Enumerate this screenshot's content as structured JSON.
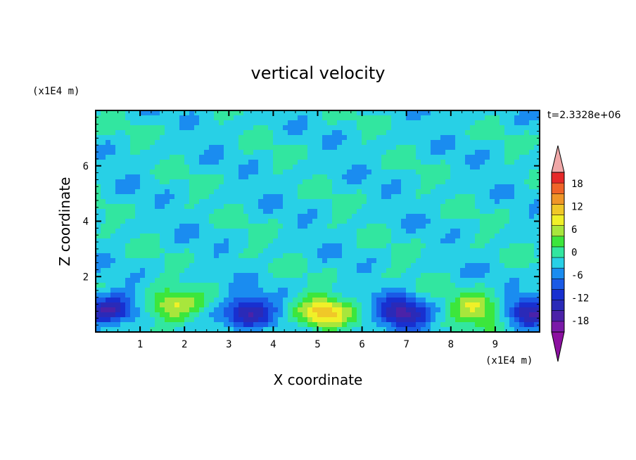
{
  "chart_data": {
    "type": "heatmap",
    "title": "vertical velocity",
    "xlabel": "X coordinate",
    "ylabel": "Z coordinate",
    "x_unit": "(x1E4 m)",
    "y_unit": "(x1E4 m)",
    "time_label": "t=2.3328e+06",
    "xlim": [
      0,
      10
    ],
    "ylim": [
      0,
      8
    ],
    "x_ticks": [
      1,
      2,
      3,
      4,
      5,
      6,
      7,
      8,
      9
    ],
    "y_ticks": [
      2,
      4,
      6
    ],
    "colorbar": {
      "levels": [
        -21,
        -18,
        -15,
        -12,
        -9,
        -6,
        -3,
        0,
        3,
        6,
        9,
        12,
        15,
        18,
        21
      ],
      "tick_labels": [
        "18",
        "12",
        "6",
        "0",
        "-6",
        "-12",
        "-18"
      ],
      "tick_values": [
        18,
        12,
        6,
        0,
        -6,
        -12,
        -18
      ],
      "colors": [
        "#7a1aa8",
        "#4b22a8",
        "#2a2ab8",
        "#1830d0",
        "#1a5ae6",
        "#1a8cf0",
        "#28d0e6",
        "#32e6a0",
        "#3ce63c",
        "#a8e63c",
        "#f0f028",
        "#f0c828",
        "#f09628",
        "#f06428",
        "#e62828"
      ],
      "under_color": "#8c10a0",
      "over_color": "#f0a8a8"
    },
    "features": [
      {
        "x": 0.3,
        "z": 0.75,
        "value": -15
      },
      {
        "x": 1.7,
        "z": 0.9,
        "value": 12
      },
      {
        "x": 3.4,
        "z": 0.7,
        "value": -15
      },
      {
        "x": 5.1,
        "z": 0.65,
        "value": 15
      },
      {
        "x": 6.9,
        "z": 0.65,
        "value": -15
      },
      {
        "x": 8.6,
        "z": 0.85,
        "value": 10
      },
      {
        "x": 9.8,
        "z": 0.75,
        "value": -12
      }
    ],
    "background_value": -1
  }
}
